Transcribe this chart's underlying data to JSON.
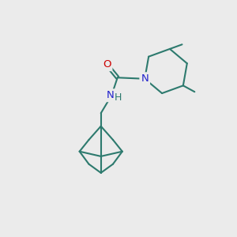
{
  "background_color": "#ebebeb",
  "bond_color": "#2d7a6e",
  "N_color": "#2222cc",
  "O_color": "#cc0000",
  "line_width": 1.5,
  "font_size_atom": 9.5,
  "xlim": [
    0,
    10
  ],
  "ylim": [
    0,
    10
  ]
}
